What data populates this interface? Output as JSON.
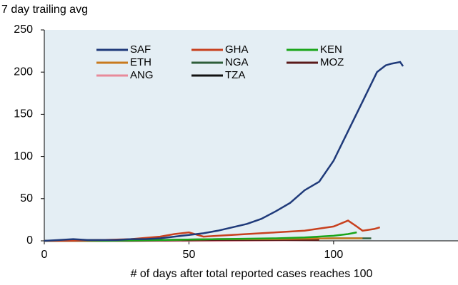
{
  "chart_data": {
    "type": "line",
    "subtitle": "7 day trailing avg",
    "x_label": "# of days after total reported cases reaches 100",
    "xlim": [
      0,
      143
    ],
    "xticks": [
      0,
      50,
      100
    ],
    "ylim": [
      0,
      250
    ],
    "yticks": [
      0,
      50,
      100,
      150,
      200,
      250
    ],
    "series": [
      {
        "name": "SAF",
        "color": "#1f3a7a",
        "x": [
          0,
          5,
          10,
          15,
          20,
          25,
          30,
          35,
          40,
          45,
          50,
          55,
          60,
          65,
          70,
          75,
          80,
          85,
          90,
          95,
          100,
          105,
          110,
          115,
          118,
          120,
          123,
          124
        ],
        "values": [
          0,
          1,
          2,
          1,
          1,
          1,
          2,
          2,
          3,
          5,
          7,
          9,
          12,
          16,
          20,
          26,
          35,
          45,
          60,
          70,
          95,
          130,
          165,
          200,
          208,
          210,
          212,
          207
        ]
      },
      {
        "name": "GHA",
        "color": "#c8401e",
        "x": [
          0,
          10,
          20,
          30,
          40,
          45,
          50,
          55,
          60,
          70,
          80,
          90,
          100,
          105,
          108,
          110,
          114,
          116
        ],
        "values": [
          0,
          0,
          1,
          2,
          5,
          8,
          10,
          5,
          6,
          8,
          10,
          12,
          17,
          24,
          17,
          12,
          14,
          16
        ]
      },
      {
        "name": "KEN",
        "color": "#1aa51a",
        "x": [
          0,
          20,
          40,
          60,
          80,
          90,
          100,
          105,
          108
        ],
        "values": [
          0,
          0,
          1,
          2,
          3,
          4,
          6,
          8,
          10
        ]
      },
      {
        "name": "ETH",
        "color": "#c87a1e",
        "x": [
          0,
          20,
          40,
          60,
          80,
          100,
          110
        ],
        "values": [
          0,
          1,
          1,
          2,
          2,
          3,
          3
        ]
      },
      {
        "name": "NGA",
        "color": "#2e5e3a",
        "x": [
          0,
          20,
          40,
          60,
          80,
          100,
          113
        ],
        "values": [
          0,
          1,
          1,
          2,
          2,
          3,
          3
        ]
      },
      {
        "name": "MOZ",
        "color": "#5a1a1a",
        "x": [
          0,
          30,
          60,
          95
        ],
        "values": [
          0,
          0,
          1,
          1
        ]
      },
      {
        "name": "ANG",
        "color": "#e88a9a",
        "x": [
          0,
          30,
          60,
          95
        ],
        "values": [
          0,
          0,
          0,
          1
        ]
      },
      {
        "name": "TZA",
        "color": "#111111",
        "x": [
          0,
          30,
          60,
          95
        ],
        "values": [
          0,
          1,
          1,
          1
        ]
      }
    ]
  }
}
